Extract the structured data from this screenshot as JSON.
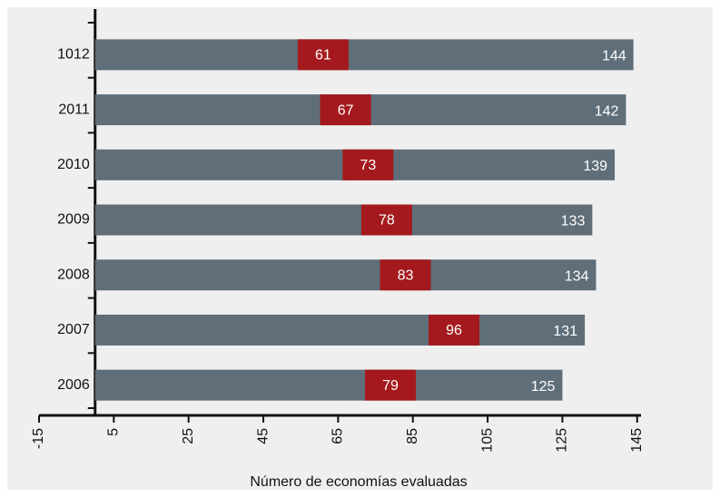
{
  "chart_data": {
    "type": "bar",
    "orientation": "horizontal",
    "categories": [
      "1012",
      "2011",
      "2010",
      "2009",
      "2008",
      "2007",
      "2006"
    ],
    "series": [
      {
        "color": "#5f6e79",
        "values": [
          144,
          142,
          139,
          133,
          134,
          131,
          125
        ]
      },
      {
        "color": "#a4191d",
        "values": [
          61,
          67,
          73,
          78,
          83,
          96,
          79
        ]
      }
    ],
    "xlabel": "Número de economías evaluadas",
    "xlim": [
      -15,
      147
    ],
    "xticks": [
      -15,
      5,
      25,
      45,
      65,
      85,
      105,
      125,
      145
    ]
  }
}
